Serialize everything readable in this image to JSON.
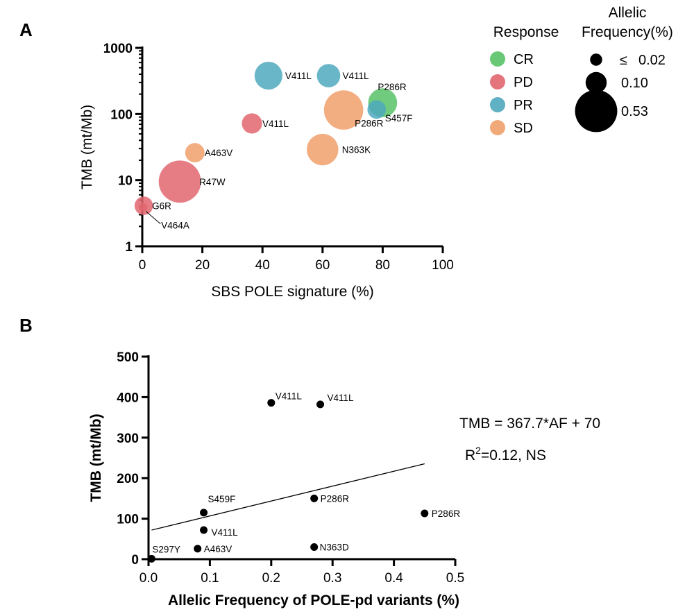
{
  "chart_data": [
    {
      "panel": "A",
      "type": "scatter",
      "xlabel": "SBS POLE signature (%)",
      "ylabel": "TMB (mt/Mb)",
      "xlim": [
        0,
        100
      ],
      "ylim": [
        1,
        1000
      ],
      "yscale": "log",
      "xticks": [
        "0",
        "20",
        "40",
        "60",
        "80",
        "100"
      ],
      "yticks": [
        "1",
        "10",
        "100",
        "1000"
      ],
      "size_encoding": "Allelic Frequency(%)",
      "color_legend": {
        "title": "Response",
        "entries": [
          {
            "name": "CR",
            "color": "#58c267"
          },
          {
            "name": "PD",
            "color": "#e2666f"
          },
          {
            "name": "PR",
            "color": "#4ea9bd"
          },
          {
            "name": "SD",
            "color": "#f0a06b"
          }
        ]
      },
      "size_legend": {
        "title_line1": "Allelic",
        "title_line2": "Frequency(%)",
        "entries": [
          {
            "label": "≤",
            "value": "0.02",
            "af": 0.02
          },
          {
            "label": "",
            "value": "0.10",
            "af": 0.1
          },
          {
            "label": "",
            "value": "0.53",
            "af": 0.53
          }
        ]
      },
      "points": [
        {
          "x": 42,
          "y": 380,
          "af": 0.2,
          "response": "PR",
          "label": "V411L"
        },
        {
          "x": 62,
          "y": 380,
          "af": 0.13,
          "response": "PR",
          "label": "V411L"
        },
        {
          "x": 80,
          "y": 148,
          "af": 0.22,
          "response": "CR",
          "label": "P286R"
        },
        {
          "x": 78,
          "y": 117,
          "af": 0.07,
          "response": "PR",
          "label": "S457F"
        },
        {
          "x": 67,
          "y": 115,
          "af": 0.45,
          "response": "SD",
          "label": "P286R"
        },
        {
          "x": 36.5,
          "y": 72,
          "af": 0.09,
          "response": "PD",
          "label": "V411L"
        },
        {
          "x": 60,
          "y": 29,
          "af": 0.27,
          "response": "SD",
          "label": "N363K"
        },
        {
          "x": 17.5,
          "y": 26,
          "af": 0.08,
          "response": "SD",
          "label": "A463V"
        },
        {
          "x": 12.5,
          "y": 9.5,
          "af": 0.53,
          "response": "PD",
          "label": "R47W"
        },
        {
          "x": 0.5,
          "y": 4.1,
          "af": 0.07,
          "response": "PD",
          "label": "G6R"
        },
        {
          "x": 0.3,
          "y": 3.9,
          "af": 0.005,
          "response": "PD",
          "label": "V464A"
        }
      ]
    },
    {
      "panel": "B",
      "type": "scatter",
      "xlabel": "Allelic Frequency of POLE-pd variants (%)",
      "ylabel": "TMB (mt/Mb)",
      "xlim": [
        0,
        0.5
      ],
      "ylim": [
        0,
        500
      ],
      "xticks": [
        "0.0",
        "0.1",
        "0.2",
        "0.3",
        "0.4",
        "0.5"
      ],
      "yticks": [
        "0",
        "100",
        "200",
        "300",
        "400",
        "500"
      ],
      "points": [
        {
          "x": 0.2,
          "y": 386,
          "label": "V411L"
        },
        {
          "x": 0.28,
          "y": 382,
          "label": "V411L"
        },
        {
          "x": 0.27,
          "y": 150,
          "label": "P286R"
        },
        {
          "x": 0.09,
          "y": 115,
          "label": "S459F"
        },
        {
          "x": 0.45,
          "y": 113,
          "label": "P286R"
        },
        {
          "x": 0.09,
          "y": 72,
          "label": "V411L"
        },
        {
          "x": 0.27,
          "y": 30,
          "label": "N363D"
        },
        {
          "x": 0.08,
          "y": 26,
          "label": "A463V"
        },
        {
          "x": 0.005,
          "y": 1,
          "label": "S297Y"
        }
      ],
      "regression": {
        "slope": 367.7,
        "intercept": 70,
        "x_range": [
          0.005,
          0.45
        ]
      },
      "annotation": {
        "equation": "TMB = 367.7*AF + 70",
        "r2_prefix": "R",
        "r2_sup": "2",
        "r2_rest": "=0.12, NS"
      }
    }
  ]
}
